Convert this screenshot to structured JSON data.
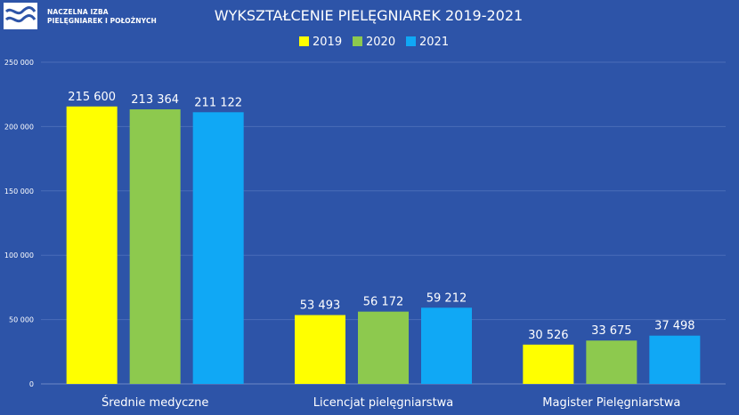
{
  "logo": {
    "line1": "NACZELNA IZBA",
    "line2": "PIELĘGNIAREK I POŁOŻNYCH",
    "icon": "wave-logo-icon"
  },
  "colors": {
    "background": "#2d54a8",
    "s2019": "#ffff00",
    "s2020": "#8dc94e",
    "s2021": "#10a8f5"
  },
  "chart_data": {
    "type": "bar",
    "title": "WYKSZTAŁCENIE PIELĘGNIAREK 2019-2021",
    "categories": [
      "Średnie medyczne",
      "Licencjat pielęgniarstwa",
      "Magister Pielęgniarstwa"
    ],
    "series": [
      {
        "name": "2019",
        "color": "#ffff00",
        "values": [
          215600,
          53493,
          30526
        ],
        "labels": [
          "215 600",
          "53 493",
          "30 526"
        ]
      },
      {
        "name": "2020",
        "color": "#8dc94e",
        "values": [
          213364,
          56172,
          33675
        ],
        "labels": [
          "213 364",
          "56 172",
          "33 675"
        ]
      },
      {
        "name": "2021",
        "color": "#10a8f5",
        "values": [
          211122,
          59212,
          37498
        ],
        "labels": [
          "211 122",
          "59 212",
          "37 498"
        ]
      }
    ],
    "ylim": [
      0,
      250000
    ],
    "yticks": [
      0,
      50000,
      100000,
      150000,
      200000,
      250000
    ],
    "ytick_labels": [
      "0",
      "50 000",
      "100 000",
      "150 000",
      "200 000",
      "250 000"
    ],
    "grid": true,
    "legend_position": "top-center"
  }
}
